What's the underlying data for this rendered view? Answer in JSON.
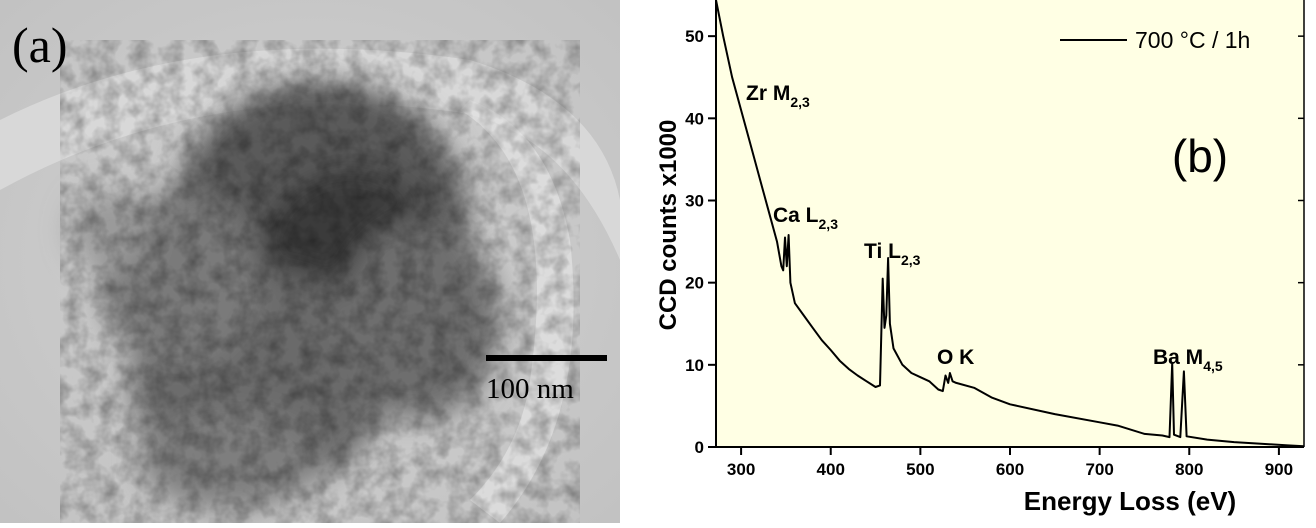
{
  "panel_a": {
    "label": "(a)",
    "scale_bar": "100 nm"
  },
  "chart_data": {
    "type": "line",
    "panel_label": "(b)",
    "xlabel": "Energy Loss (eV)",
    "ylabel": "CCD counts x1000",
    "xlim": [
      272,
      928
    ],
    "ylim": [
      0,
      54.4
    ],
    "xticks": [
      300,
      400,
      500,
      600,
      700,
      800,
      900
    ],
    "yticks": [
      0,
      10,
      20,
      30,
      40,
      50
    ],
    "legend": "upper right",
    "background": "#ffffe4",
    "annotations": [
      {
        "text": "Zr M",
        "sub": "2,3"
      },
      {
        "text": "Ca L",
        "sub": "2,3"
      },
      {
        "text": "Ti L",
        "sub": "2,3"
      },
      {
        "text": "O K"
      },
      {
        "text": "Ba M",
        "sub": "4,5"
      }
    ],
    "x": [
      272,
      280,
      290,
      300,
      310,
      320,
      330,
      340,
      345,
      347,
      349,
      351,
      353,
      355,
      360,
      370,
      380,
      390,
      400,
      410,
      420,
      430,
      440,
      450,
      455,
      458,
      460,
      462,
      464,
      466,
      470,
      480,
      490,
      500,
      510,
      520,
      525,
      528,
      531,
      533,
      536,
      540,
      560,
      580,
      600,
      650,
      700,
      720,
      750,
      770,
      778,
      781,
      783,
      790,
      794,
      797,
      820,
      850,
      880,
      910,
      928
    ],
    "series": [
      {
        "name": "700 °C / 1h",
        "color": "#000000",
        "values": [
          54.4,
          50,
          45,
          41,
          37,
          33,
          29,
          25,
          22,
          21.5,
          25.5,
          22,
          25.8,
          20,
          17.5,
          16,
          14.5,
          13,
          11.8,
          10.5,
          9.5,
          8.7,
          8,
          7.3,
          7.5,
          20.5,
          14.5,
          16,
          23,
          15,
          12,
          10,
          9,
          8.5,
          8,
          7,
          6.8,
          8.7,
          7.8,
          9,
          8,
          7.8,
          7.2,
          6,
          5.2,
          4,
          3,
          2.6,
          1.6,
          1.4,
          1.2,
          10.2,
          1.5,
          1.2,
          9.2,
          1.3,
          0.9,
          0.6,
          0.4,
          0.2,
          0.1
        ]
      }
    ]
  }
}
